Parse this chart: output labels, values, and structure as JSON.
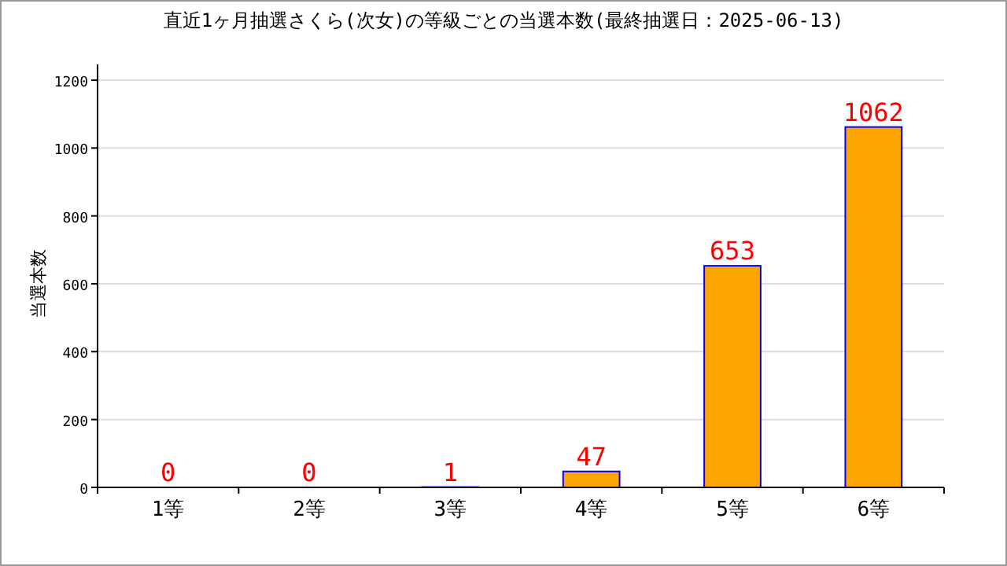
{
  "chart_data": {
    "type": "bar",
    "title": "直近1ヶ月抽選さくら(次女)の等級ごとの当選本数(最終抽選日：2025-06-13)",
    "ylabel": "当選本数",
    "categories": [
      "1等",
      "2等",
      "3等",
      "4等",
      "5等",
      "6等"
    ],
    "values": [
      0,
      0,
      1,
      47,
      653,
      1062
    ],
    "color": "#ffa500",
    "ylim": [
      0,
      1200
    ],
    "yticks": [
      0,
      200,
      400,
      600,
      800,
      1000,
      1200
    ],
    "grid": "y",
    "data_labels": true
  }
}
